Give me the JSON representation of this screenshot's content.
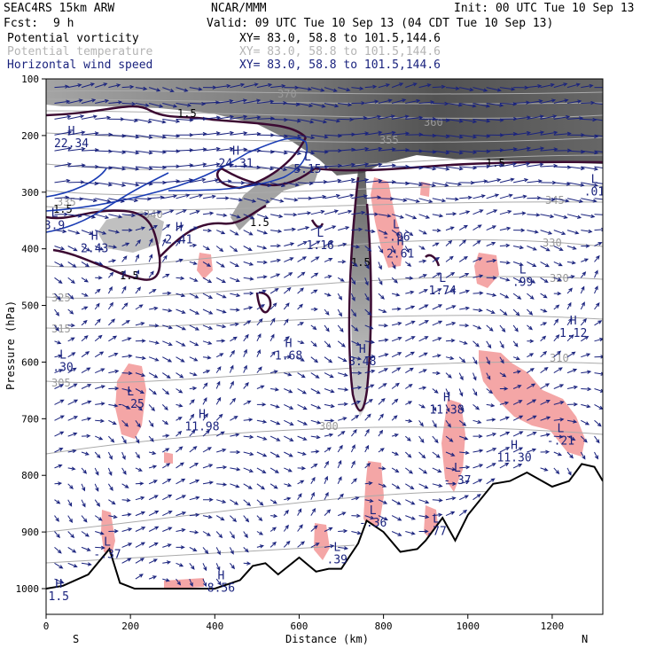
{
  "header": {
    "model": "SEAC4RS 15km ARW",
    "org": "NCAR/MMM",
    "init": "Init: 00 UTC Tue 10 Sep 13",
    "fcst_label": "Fcst:",
    "fcst_value": "9 h",
    "valid": "Valid: 09 UTC Tue 10 Sep 13 (04 CDT Tue 10 Sep 13)"
  },
  "fields": [
    {
      "name": "Potential vorticity",
      "xy": "XY=  83.0, 58.8 to 101.5,144.6",
      "color": "#000000"
    },
    {
      "name": "Potential temperature",
      "xy": "XY=  83.0, 58.8 to 101.5,144.6",
      "color": "#b4b4b4"
    },
    {
      "name": "Horizontal wind speed",
      "xy": "XY=  83.0, 58.8 to 101.5,144.6",
      "color": "#1a237e"
    }
  ],
  "colors": {
    "pv_shade": "#505050",
    "pv_contour": "#3c0a32",
    "theta": "#aaaaaa",
    "wind": "#1a237e",
    "negative_pv": "#f4a6a6",
    "terrain": "#000000"
  },
  "chart_data": {
    "type": "cross-section",
    "xlabel": "Distance (km)",
    "ylabel": "Pressure (hPa)",
    "x_range": [
      0,
      1320
    ],
    "y_range": [
      1050,
      100
    ],
    "x_ticks": [
      "0",
      "200",
      "400",
      "600",
      "800",
      "1000",
      "1200"
    ],
    "y_ticks": [
      "100",
      "200",
      "300",
      "400",
      "500",
      "600",
      "700",
      "800",
      "900",
      "1000"
    ],
    "x_end_labels": {
      "left": "S",
      "right": "N"
    },
    "terrain_profile": [
      [
        0,
        1000
      ],
      [
        40,
        995
      ],
      [
        100,
        975
      ],
      [
        150,
        930
      ],
      [
        175,
        990
      ],
      [
        210,
        1000
      ],
      [
        400,
        1000
      ],
      [
        460,
        985
      ],
      [
        490,
        960
      ],
      [
        520,
        955
      ],
      [
        550,
        975
      ],
      [
        600,
        945
      ],
      [
        640,
        970
      ],
      [
        670,
        965
      ],
      [
        700,
        965
      ],
      [
        740,
        920
      ],
      [
        760,
        880
      ],
      [
        800,
        900
      ],
      [
        840,
        935
      ],
      [
        880,
        930
      ],
      [
        900,
        915
      ],
      [
        940,
        875
      ],
      [
        970,
        915
      ],
      [
        1000,
        870
      ],
      [
        1060,
        815
      ],
      [
        1100,
        810
      ],
      [
        1140,
        795
      ],
      [
        1200,
        820
      ],
      [
        1240,
        810
      ],
      [
        1270,
        780
      ],
      [
        1300,
        785
      ],
      [
        1320,
        810
      ]
    ],
    "theta_contours": [
      {
        "label": "370",
        "p": 150
      },
      {
        "label": "360",
        "p": 190
      },
      {
        "label": "355",
        "p": 225
      },
      {
        "label": "345",
        "p": 290
      },
      {
        "label": "335",
        "p": 310
      },
      {
        "label": "340",
        "p": 355
      },
      {
        "label": "330",
        "p": 375
      },
      {
        "label": "325",
        "p": 465
      },
      {
        "label": "320",
        "p": 540
      },
      {
        "label": "315",
        "p": 640
      },
      {
        "label": "310",
        "p": 760
      },
      {
        "label": "305",
        "p": 880
      },
      {
        "label": "300",
        "p": 980
      }
    ],
    "pv_labels": [
      "1.5",
      "1.5",
      "1.5",
      "1.5",
      "1.5",
      "1.5",
      "1.5",
      "1.5"
    ],
    "wind_extrema": [
      {
        "type": "H",
        "value": "22.34",
        "x": 60,
        "p": 205
      },
      {
        "type": "H",
        "value": "24.31",
        "x": 450,
        "p": 240
      },
      {
        "type": "L",
        "value": "5.15",
        "x": 620,
        "p": 250
      },
      {
        "type": "L",
        "value": ".01",
        "x": 1300,
        "p": 290
      },
      {
        "type": "L",
        "value": "3.9",
        "x": 20,
        "p": 350
      },
      {
        "type": "H",
        "value": "2.43",
        "x": 115,
        "p": 390
      },
      {
        "type": "H",
        "value": "2.41",
        "x": 315,
        "p": 375
      },
      {
        "type": "L",
        "value": "1.16",
        "x": 650,
        "p": 385
      },
      {
        "type": "L",
        "value": "-.96",
        "x": 830,
        "p": 370
      },
      {
        "type": "H",
        "value": "2.61",
        "x": 840,
        "p": 400
      },
      {
        "type": "L",
        "value": "1.74",
        "x": 940,
        "p": 465
      },
      {
        "type": "L",
        "value": ".99",
        "x": 1130,
        "p": 450
      },
      {
        "type": "H",
        "value": "1.12",
        "x": 1250,
        "p": 540
      },
      {
        "type": "H",
        "value": "1.68",
        "x": 575,
        "p": 580
      },
      {
        "type": "H",
        "value": "3.48",
        "x": 750,
        "p": 590
      },
      {
        "type": "L",
        "value": ".30",
        "x": 40,
        "p": 600
      },
      {
        "type": "L",
        "value": "-.25",
        "x": 200,
        "p": 665
      },
      {
        "type": "H",
        "value": "11.98",
        "x": 370,
        "p": 705
      },
      {
        "type": "H",
        "value": "11.38",
        "x": 950,
        "p": 675
      },
      {
        "type": "L",
        "value": "-.21",
        "x": 1220,
        "p": 730
      },
      {
        "type": "H",
        "value": "11.30",
        "x": 1110,
        "p": 760
      },
      {
        "type": "L",
        "value": "-.37",
        "x": 975,
        "p": 800
      },
      {
        "type": "L",
        "value": "-.36",
        "x": 775,
        "p": 875
      },
      {
        "type": "L",
        "value": ".77",
        "x": 925,
        "p": 890
      },
      {
        "type": "L",
        "value": "-.37",
        "x": 145,
        "p": 930
      },
      {
        "type": "L",
        "value": ".39",
        "x": 690,
        "p": 940
      },
      {
        "type": "H",
        "value": "8.56",
        "x": 415,
        "p": 990
      },
      {
        "type": "H",
        "value": "1.5",
        "x": 30,
        "p": 1005
      }
    ]
  }
}
